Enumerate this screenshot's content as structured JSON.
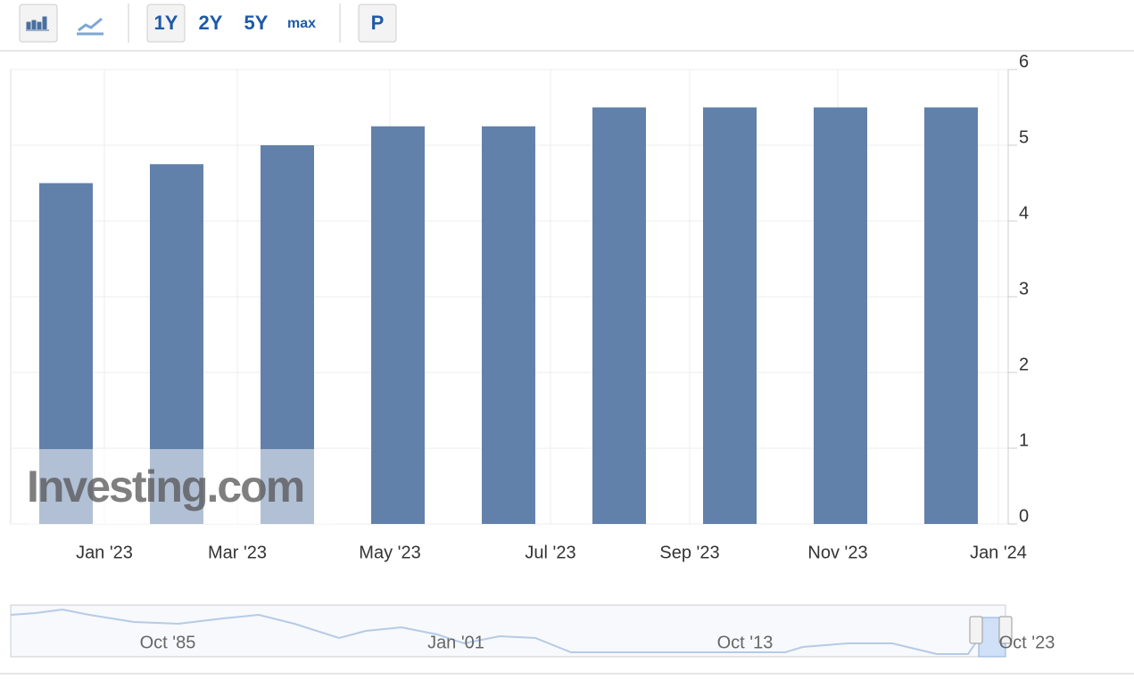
{
  "toolbar": {
    "ranges": [
      "1Y",
      "2Y",
      "5Y",
      "max"
    ],
    "print": "P"
  },
  "chart_data": {
    "type": "bar",
    "watermark": "Investing.com",
    "categories": [
      null,
      null,
      null,
      null,
      null,
      null,
      null,
      null,
      null
    ],
    "values": [
      4.5,
      4.75,
      5.0,
      5.25,
      5.25,
      5.5,
      5.5,
      5.5,
      5.5
    ],
    "color": "#6281aa",
    "xtick_labels": [
      "Jan '23",
      "Mar '23",
      "May '23",
      "Jul '23",
      "Sep '23",
      "Nov '23",
      "Jan '24"
    ],
    "ylim": [
      0,
      6
    ],
    "yticks": [
      0,
      1,
      2,
      3,
      4,
      5,
      6
    ],
    "grid": true
  },
  "navigator": {
    "labels": [
      "Oct '85",
      "Jan '01",
      "Oct '13",
      "Oct '23"
    ]
  }
}
